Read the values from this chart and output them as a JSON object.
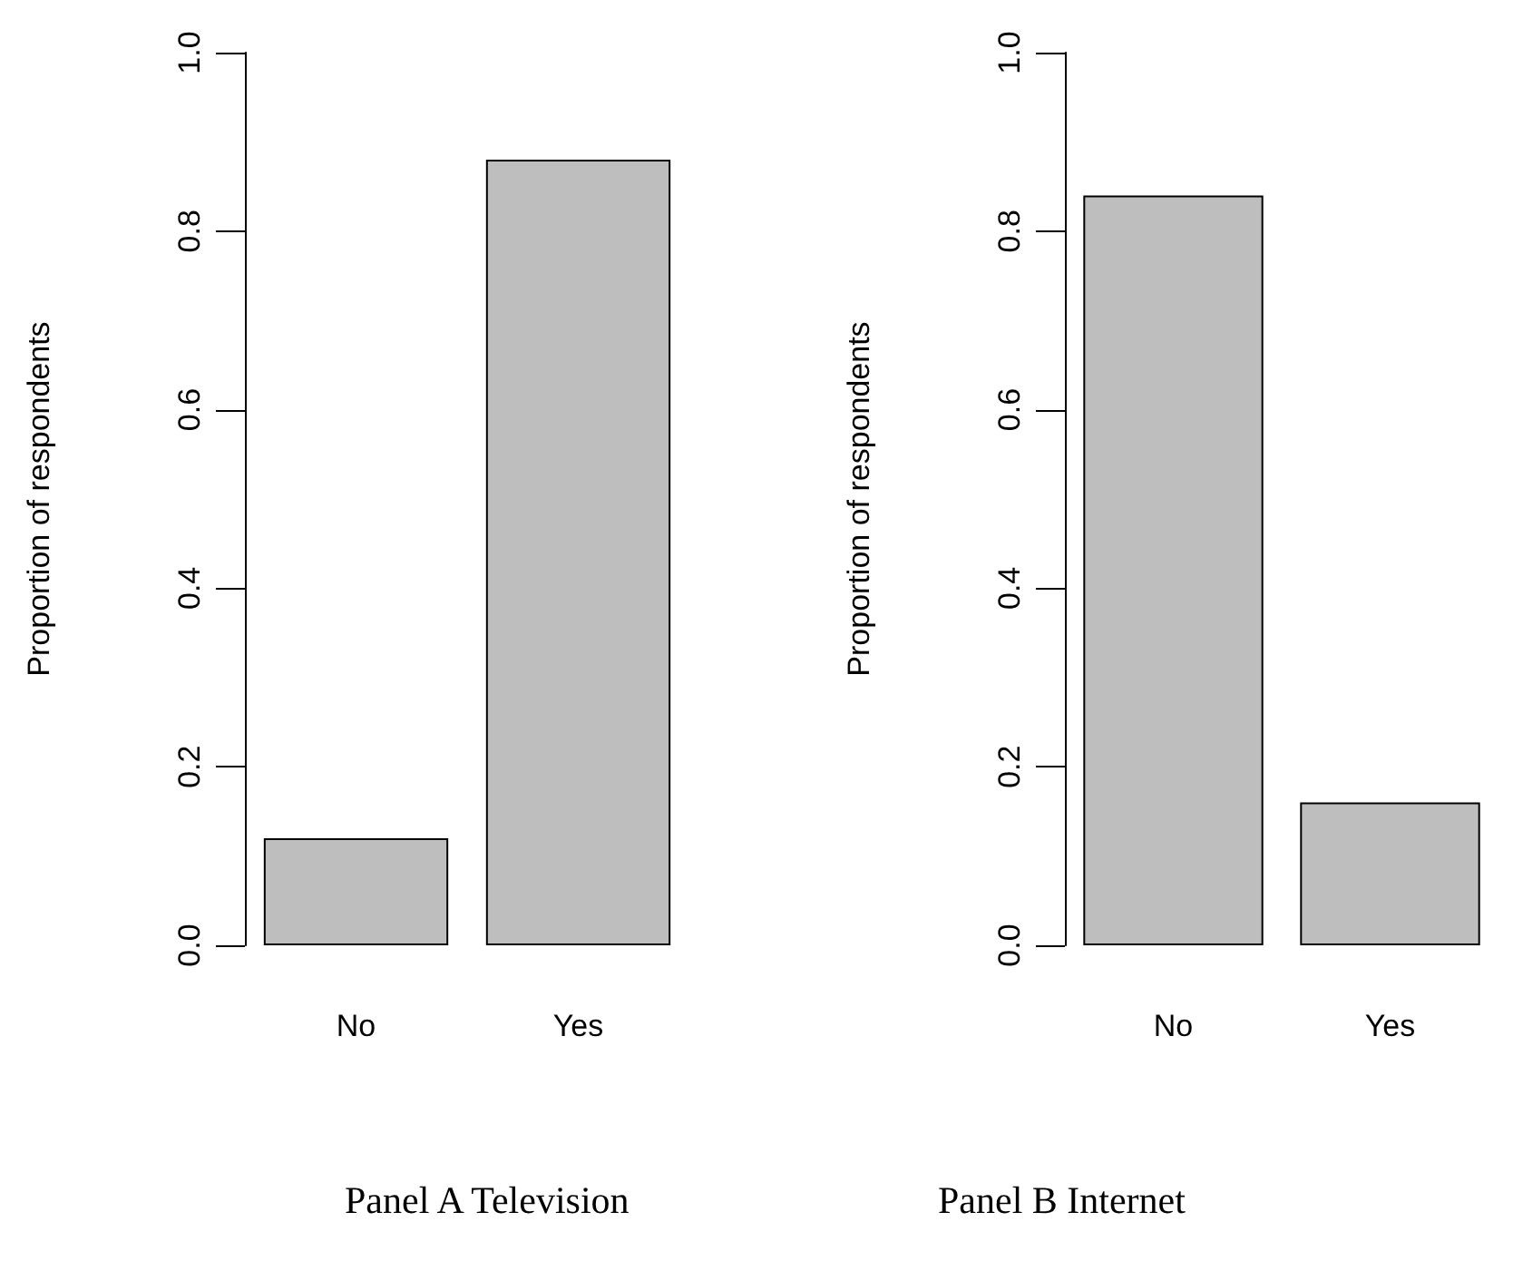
{
  "chart_data": [
    {
      "type": "bar",
      "title": "Panel A Television",
      "ylabel": "Proportion of respondents",
      "categories": [
        "No",
        "Yes"
      ],
      "values": [
        0.12,
        0.88
      ],
      "color": "#bebebe",
      "ylim": [
        0,
        1
      ],
      "yticks": [
        {
          "value": 0,
          "label": "0.0"
        },
        {
          "value": 0.2,
          "label": "0.2"
        },
        {
          "value": 0.4,
          "label": "0.4"
        },
        {
          "value": 0.6,
          "label": "0.6"
        },
        {
          "value": 0.8,
          "label": "0.8"
        },
        {
          "value": 1,
          "label": "1.0"
        }
      ]
    },
    {
      "type": "bar",
      "title": "Panel B Internet",
      "ylabel": "Proportion of respondents",
      "categories": [
        "No",
        "Yes"
      ],
      "values": [
        0.84,
        0.16
      ],
      "color": "#bebebe",
      "ylim": [
        0,
        1
      ],
      "yticks": [
        {
          "value": 0,
          "label": "0.0"
        },
        {
          "value": 0.2,
          "label": "0.2"
        },
        {
          "value": 0.4,
          "label": "0.4"
        },
        {
          "value": 0.6,
          "label": "0.6"
        },
        {
          "value": 0.8,
          "label": "0.8"
        },
        {
          "value": 1,
          "label": "1.0"
        }
      ]
    }
  ]
}
